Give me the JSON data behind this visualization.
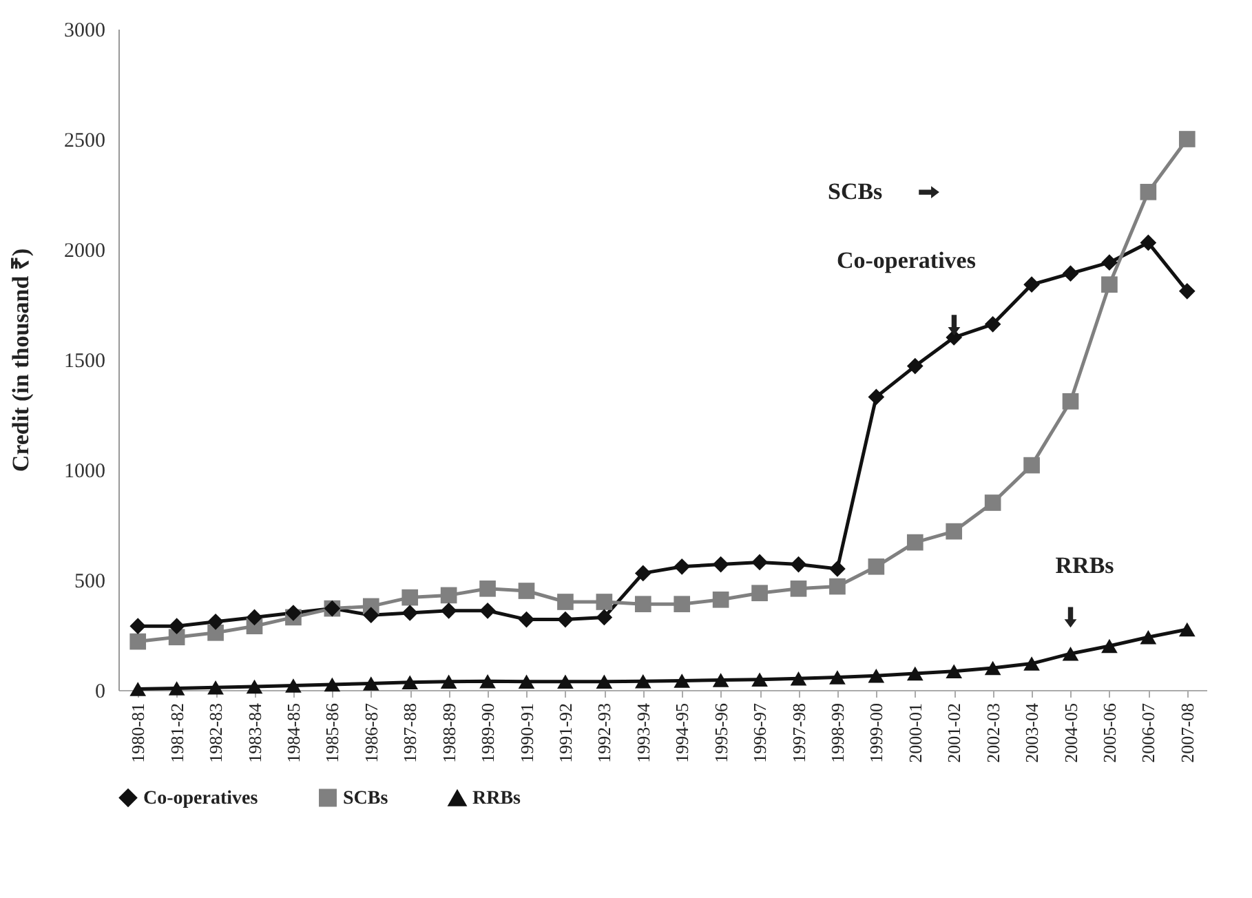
{
  "chart_data": {
    "type": "line",
    "ylabel": "Credit (in thousand ₹)",
    "categories": [
      "1980-81",
      "1981-82",
      "1982-83",
      "1983-84",
      "1984-85",
      "1985-86",
      "1986-87",
      "1987-88",
      "1988-89",
      "1989-90",
      "1990-91",
      "1991-92",
      "1992-93",
      "1993-94",
      "1994-95",
      "1995-96",
      "1996-97",
      "1997-98",
      "1998-99",
      "1999-00",
      "2000-01",
      "2001-02",
      "2002-03",
      "2003-04",
      "2004-05",
      "2005-06",
      "2006-07",
      "2007-08"
    ],
    "series": [
      {
        "name": "Co-operatives",
        "color": "#111111",
        "marker": "diamond",
        "values": [
          290,
          290,
          310,
          330,
          350,
          370,
          340,
          350,
          360,
          360,
          320,
          320,
          330,
          530,
          560,
          570,
          580,
          570,
          550,
          1330,
          1470,
          1600,
          1660,
          1840,
          1890,
          1940,
          2030,
          1810
        ]
      },
      {
        "name": "SCBs",
        "color": "#808080",
        "marker": "square",
        "values": [
          220,
          240,
          260,
          290,
          330,
          370,
          380,
          420,
          430,
          460,
          450,
          400,
          400,
          390,
          390,
          410,
          440,
          460,
          470,
          560,
          670,
          720,
          850,
          1020,
          1310,
          1840,
          2260,
          2500
        ]
      },
      {
        "name": "RRBs",
        "color": "#111111",
        "marker": "triangle",
        "values": [
          5,
          8,
          12,
          16,
          20,
          25,
          30,
          35,
          38,
          40,
          38,
          38,
          38,
          40,
          42,
          45,
          48,
          52,
          58,
          65,
          75,
          85,
          100,
          120,
          165,
          200,
          240,
          275
        ]
      }
    ],
    "ylim": [
      0,
      3000
    ],
    "yticks": [
      0,
      500,
      {
        "value": 1000,
        "label": "1000"
      },
      {
        "value": 1500,
        "label": "1500"
      },
      {
        "value": 2000,
        "label": "2000"
      },
      {
        "value": 2500,
        "label": "2500"
      },
      {
        "value": 3000,
        "label": "3000"
      }
    ],
    "grid": false,
    "legend": "bottom",
    "annotations": [
      "Co-operatives",
      "SCBs",
      "RRBs"
    ]
  }
}
